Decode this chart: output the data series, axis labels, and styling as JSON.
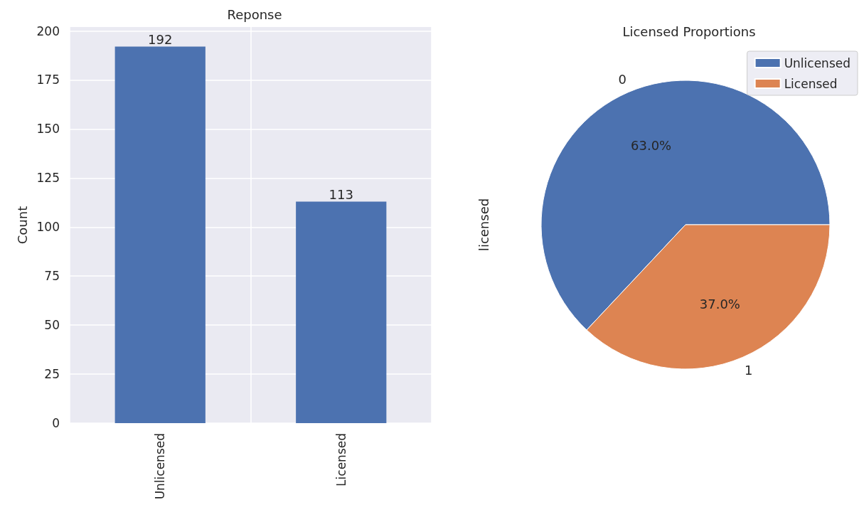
{
  "chart_data": [
    {
      "type": "bar",
      "title": "Reponse",
      "ylabel": "Count",
      "categories": [
        "Unlicensed",
        "Licensed"
      ],
      "values": [
        192,
        113
      ],
      "color": "#4c72b0",
      "ylim": [
        0,
        202
      ],
      "yticks": [
        0,
        25,
        50,
        75,
        100,
        125,
        150,
        175,
        200
      ],
      "grid": true,
      "data_labels": true
    },
    {
      "type": "pie",
      "title": "Licensed Proportions",
      "ylabel": "licensed",
      "categories": [
        "Unlicensed",
        "Licensed"
      ],
      "values": [
        63.0,
        37.0
      ],
      "colors": [
        "#4c72b0",
        "#dd8452"
      ],
      "value_labels": [
        "63.0%",
        "37.0%"
      ],
      "annotations": [
        "0",
        "1"
      ],
      "legend": "top right"
    }
  ]
}
